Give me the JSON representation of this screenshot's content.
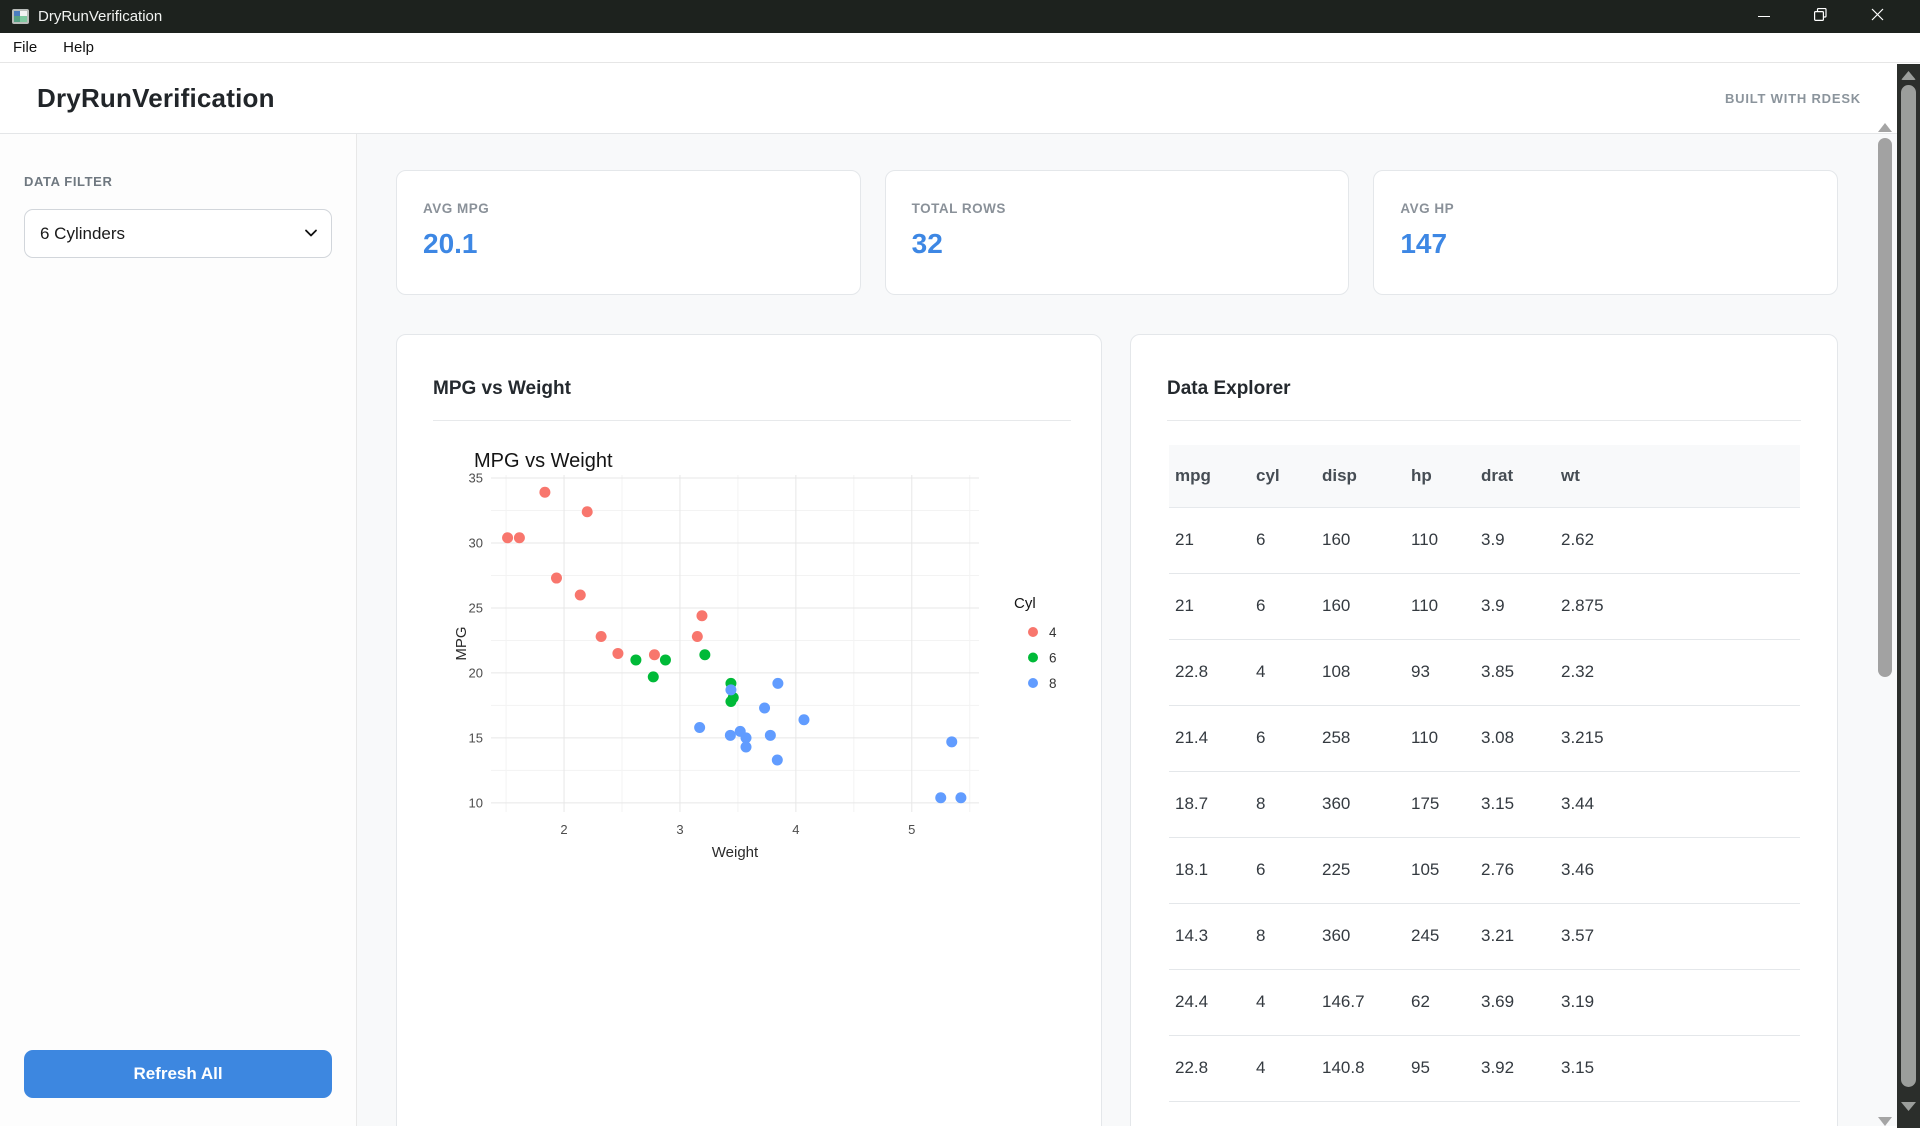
{
  "window": {
    "title": "DryRunVerification"
  },
  "menu": {
    "items": [
      "File",
      "Help"
    ]
  },
  "header": {
    "title": "DryRunVerification",
    "badge": "BUILT WITH RDESK"
  },
  "sidebar": {
    "filter_label": "DATA FILTER",
    "filter_value": "6 Cylinders",
    "refresh_label": "Refresh All"
  },
  "stats": [
    {
      "label": "AVG MPG",
      "value": "20.1"
    },
    {
      "label": "TOTAL ROWS",
      "value": "32"
    },
    {
      "label": "AVG HP",
      "value": "147"
    }
  ],
  "chart_card": {
    "title": "MPG vs Weight"
  },
  "table_card": {
    "title": "Data Explorer",
    "columns": [
      "mpg",
      "cyl",
      "disp",
      "hp",
      "drat",
      "wt"
    ],
    "rows": [
      [
        "21",
        "6",
        "160",
        "110",
        "3.9",
        "2.62"
      ],
      [
        "21",
        "6",
        "160",
        "110",
        "3.9",
        "2.875"
      ],
      [
        "22.8",
        "4",
        "108",
        "93",
        "3.85",
        "2.32"
      ],
      [
        "21.4",
        "6",
        "258",
        "110",
        "3.08",
        "3.215"
      ],
      [
        "18.7",
        "8",
        "360",
        "175",
        "3.15",
        "3.44"
      ],
      [
        "18.1",
        "6",
        "225",
        "105",
        "2.76",
        "3.46"
      ],
      [
        "14.3",
        "8",
        "360",
        "245",
        "3.21",
        "3.57"
      ],
      [
        "24.4",
        "4",
        "146.7",
        "62",
        "3.69",
        "3.19"
      ],
      [
        "22.8",
        "4",
        "140.8",
        "95",
        "3.92",
        "3.15"
      ]
    ]
  },
  "chart_data": {
    "type": "scatter",
    "title": "MPG vs Weight",
    "xlabel": "Weight",
    "ylabel": "MPG",
    "legend_title": "Cyl",
    "legend_position": "right",
    "grid": true,
    "x_domain": [
      1.37,
      5.58
    ],
    "y_domain": [
      9.3,
      35.23
    ],
    "x_ticks": [
      2,
      3,
      4,
      5
    ],
    "y_ticks": [
      10,
      15,
      20,
      25,
      30,
      35
    ],
    "x_minor": [
      1.5,
      2.5,
      3.5,
      4.5,
      5.5
    ],
    "y_minor": [
      12.5,
      17.5,
      22.5,
      27.5,
      32.5
    ],
    "series": [
      {
        "name": "4",
        "color": "#F8766D",
        "points": [
          [
            2.32,
            22.8
          ],
          [
            3.19,
            24.4
          ],
          [
            3.15,
            22.8
          ],
          [
            2.2,
            32.4
          ],
          [
            1.615,
            30.4
          ],
          [
            1.835,
            33.9
          ],
          [
            2.465,
            21.5
          ],
          [
            1.935,
            27.3
          ],
          [
            2.14,
            26.0
          ],
          [
            1.513,
            30.4
          ],
          [
            2.78,
            21.4
          ]
        ]
      },
      {
        "name": "6",
        "color": "#00BA38",
        "points": [
          [
            2.62,
            21
          ],
          [
            2.875,
            21
          ],
          [
            3.215,
            21.4
          ],
          [
            3.46,
            18.1
          ],
          [
            3.44,
            19.2
          ],
          [
            3.44,
            17.8
          ],
          [
            2.77,
            19.7
          ]
        ]
      },
      {
        "name": "8",
        "color": "#619CFF",
        "points": [
          [
            3.44,
            18.7
          ],
          [
            3.57,
            14.3
          ],
          [
            4.07,
            16.4
          ],
          [
            3.73,
            17.3
          ],
          [
            3.78,
            15.2
          ],
          [
            5.25,
            10.4
          ],
          [
            5.424,
            10.4
          ],
          [
            5.345,
            14.7
          ],
          [
            3.52,
            15.5
          ],
          [
            3.435,
            15.2
          ],
          [
            3.84,
            13.3
          ],
          [
            3.845,
            19.2
          ],
          [
            3.17,
            15.8
          ],
          [
            3.57,
            15.0
          ]
        ]
      }
    ]
  },
  "colors": {
    "titlebar_bg": "#1d221e",
    "accent_blue": "#3d87e4",
    "button_blue": "#3d87e0",
    "main_bg": "#f8f9fa",
    "cyl4": "#F8766D",
    "cyl6": "#00BA38",
    "cyl8": "#619CFF"
  }
}
